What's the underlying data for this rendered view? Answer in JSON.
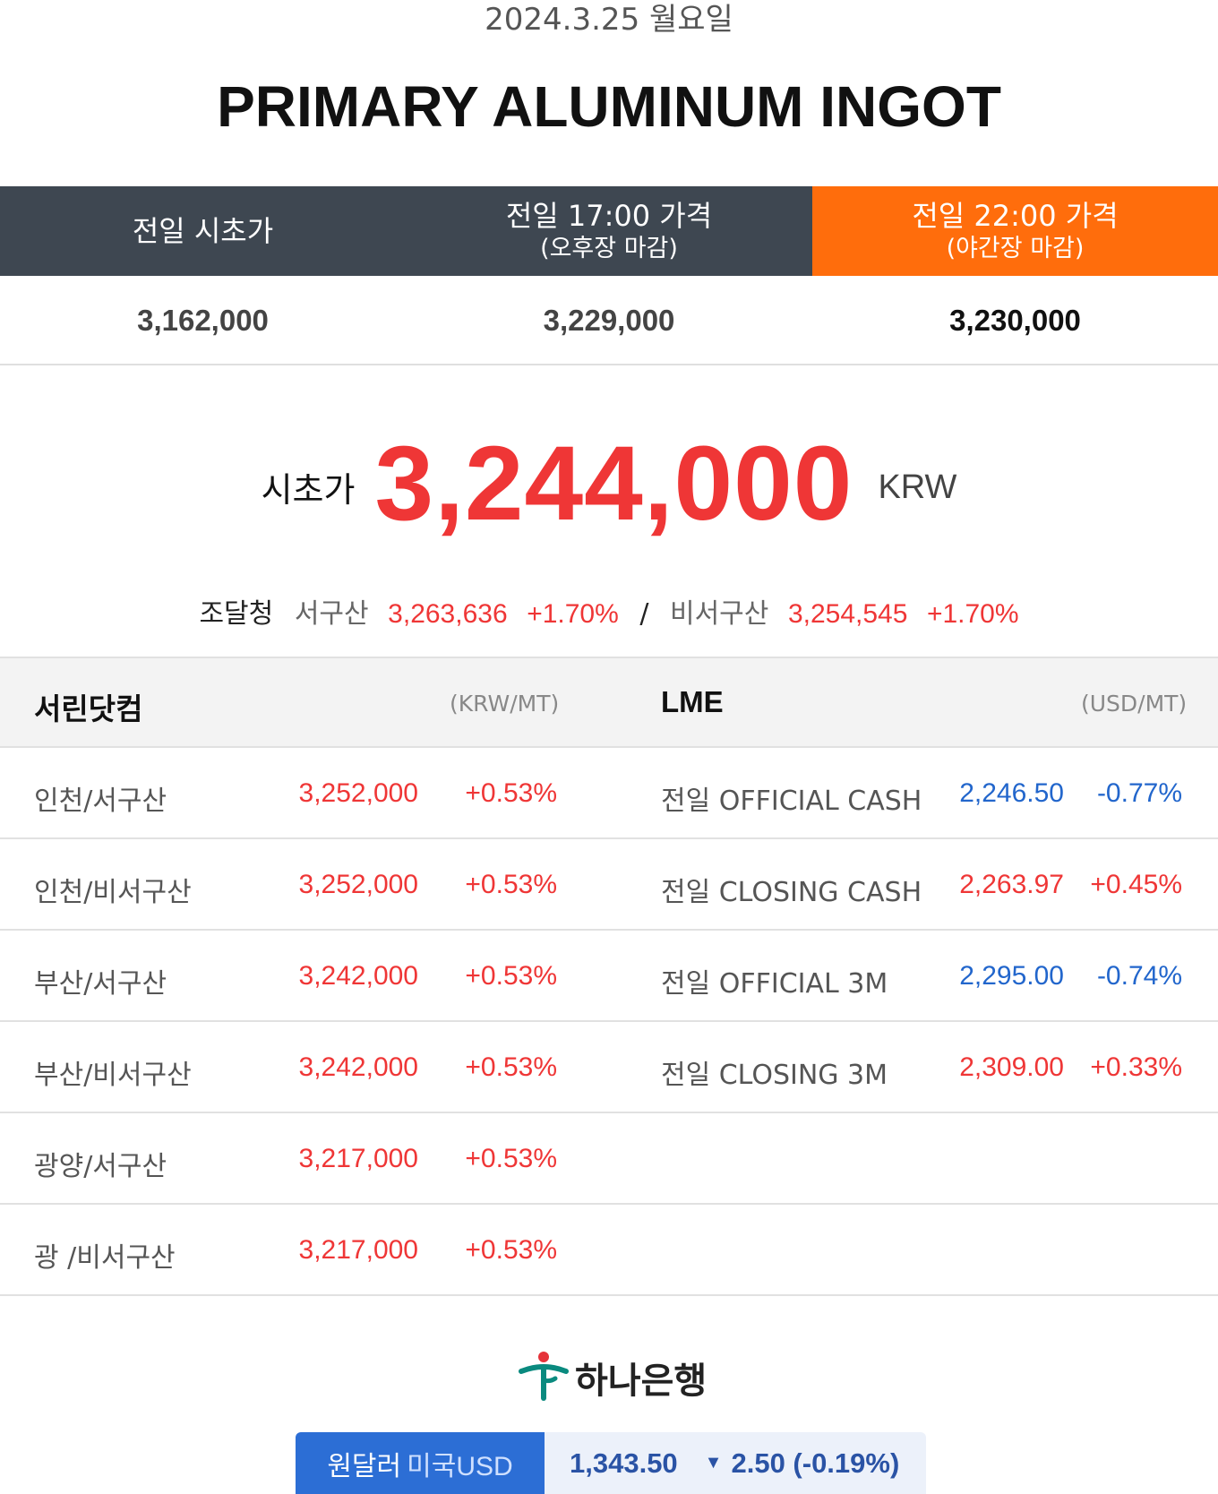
{
  "header": {
    "date": "2024.3.25 월요일",
    "title": "PRIMARY ALUMINUM INGOT"
  },
  "prev_prices": {
    "cols": [
      {
        "label": "전일 시초가",
        "sub": "",
        "value": "3,162,000"
      },
      {
        "label": "전일 17:00 가격",
        "sub": "(오후장 마감)",
        "value": "3,229,000"
      },
      {
        "label": "전일 22:00 가격",
        "sub": "(야간장 마감)",
        "value": "3,230,000"
      }
    ],
    "highlight_color": "#ff6d0c",
    "dark_color": "#3e4751"
  },
  "opening": {
    "label": "시초가",
    "value": "3,244,000",
    "unit": "KRW",
    "color": "#ef3636"
  },
  "procurement": {
    "label": "조달청",
    "west_label": "서구산",
    "west_price": "3,263,636",
    "west_pct": "+1.70%",
    "slash": "/",
    "nonwest_label": "비서구산",
    "nonwest_price": "3,254,545",
    "nonwest_pct": "+1.70%"
  },
  "table": {
    "left_header": "서린닷컴",
    "left_unit": "(KRW/MT)",
    "right_header": "LME",
    "right_unit": "(USD/MT)",
    "rows": [
      {
        "name": "인천/서구산",
        "price": "3,252,000",
        "pct": "+0.53%",
        "lme_name": "전일 OFFICIAL CASH",
        "lme_price": "2,246.50",
        "lme_pct": "-0.77%",
        "lme_dir": "down"
      },
      {
        "name": "인천/비서구산",
        "price": "3,252,000",
        "pct": "+0.53%",
        "lme_name": "전일 CLOSING CASH",
        "lme_price": "2,263.97",
        "lme_pct": "+0.45%",
        "lme_dir": "up"
      },
      {
        "name": "부산/서구산",
        "price": "3,242,000",
        "pct": "+0.53%",
        "lme_name": "전일 OFFICIAL 3M",
        "lme_price": "2,295.00",
        "lme_pct": "-0.74%",
        "lme_dir": "down"
      },
      {
        "name": "부산/비서구산",
        "price": "3,242,000",
        "pct": "+0.53%",
        "lme_name": "전일 CLOSING 3M",
        "lme_price": "2,309.00",
        "lme_pct": "+0.33%",
        "lme_dir": "up"
      },
      {
        "name": "광양/서구산",
        "price": "3,217,000",
        "pct": "+0.53%",
        "lme_name": "",
        "lme_price": "",
        "lme_pct": "",
        "lme_dir": ""
      },
      {
        "name": "광 /비서구산",
        "price": "3,217,000",
        "pct": "+0.53%",
        "lme_name": "",
        "lme_price": "",
        "lme_pct": "",
        "lme_dir": ""
      }
    ]
  },
  "bank": {
    "name": "하나은행",
    "logo_icon": "hana-bank-logo-icon"
  },
  "fx": {
    "label": "원달러",
    "sub": "미국USD",
    "rate": "1,343.50",
    "change_icon": "triangle-down-icon",
    "change": "2.50 (-0.19%)"
  }
}
